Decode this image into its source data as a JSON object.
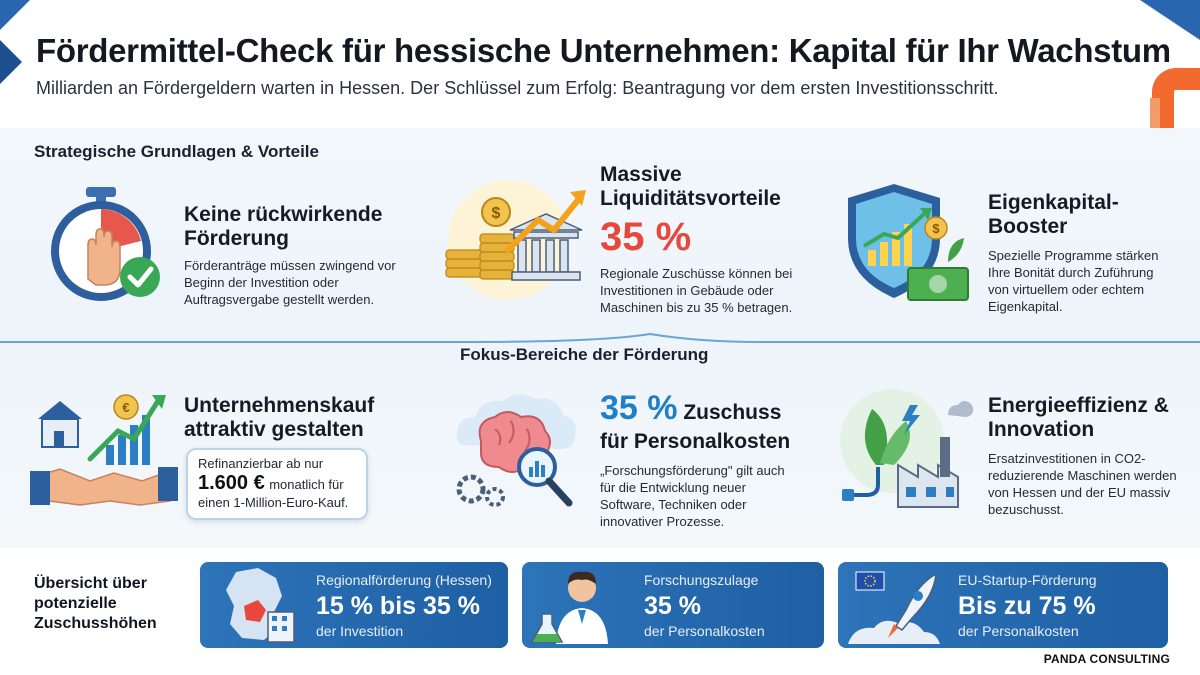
{
  "header": {
    "title": "Fördermittel-Check für hessische Unternehmen: Kapital für Ihr Wachstum",
    "subtitle": "Milliarden an Fördergeldern warten in Hessen. Der Schlüssel zum Erfolg: Beantragung vor dem ersten Investitionsschritt."
  },
  "section1": {
    "label": "Strategische Grundlagen & Vorteile",
    "items": [
      {
        "title": "Keine rückwirkende Förderung",
        "text": "Förderanträge müssen zwingend vor Beginn der Investition oder Auftragsvergabe gestellt werden.",
        "icon": "stopwatch-hand-check-icon"
      },
      {
        "title": "Massive Liquiditätsvorteile",
        "highlight": "35 %",
        "text": "Regionale Zuschüsse können bei Investitionen in Gebäude oder Maschinen bis zu 35 % betragen.",
        "icon": "coins-bank-growth-icon"
      },
      {
        "title": "Eigenkapital-Booster",
        "text": "Spezielle Programme stärken Ihre Bonität durch Zuführung von virtuellem oder echtem Eigenkapital.",
        "icon": "shield-chart-money-icon"
      }
    ]
  },
  "section2": {
    "label": "Fokus-Bereiche der Förderung",
    "items": [
      {
        "title": "Unternehmenskauf attraktiv gestalten",
        "callout_text1": "Refinanzierbar ab nur",
        "callout_amount": "1.600 €",
        "callout_text2": "monatlich für",
        "callout_text3": "einen 1-Million-Euro-Kauf.",
        "icon": "house-handshake-growth-icon"
      },
      {
        "highlight": "35 %",
        "title_rest": "Zuschuss",
        "title_line2": "für Personalkosten",
        "text": "„Forschungsförderung\" gilt auch für die Entwicklung neuer Software, Techniken oder innovativer Prozesse.",
        "icon": "brain-magnifier-gears-icon"
      },
      {
        "title": "Energieeffizienz & Innovation",
        "text": "Ersatzinvestitionen in CO2-reduzierende Maschinen werden von Hessen und der EU massiv bezuschusst.",
        "icon": "leaf-plug-factory-icon"
      }
    ]
  },
  "overview": {
    "label": "Übersicht über potenzielle Zuschusshöhen",
    "cards": [
      {
        "label": "Regionalförderung (Hessen)",
        "value": "15 % bis 35 %",
        "sub": "der Investition",
        "icon": "germany-map-building-icon"
      },
      {
        "label": "Forschungszulage",
        "value": "35 %",
        "sub": "der Personalkosten",
        "icon": "scientist-flask-icon"
      },
      {
        "label": "EU-Startup-Förderung",
        "value": "Bis zu 75 %",
        "sub": "der Personalkosten",
        "icon": "eu-flag-rocket-icon"
      }
    ]
  },
  "brand": "PANDA CONSULTING",
  "colors": {
    "accent_red": "#e8473e",
    "accent_blue": "#1f7fc9",
    "card_blue": "#2368ad",
    "deco_orange": "#f26a2e"
  }
}
